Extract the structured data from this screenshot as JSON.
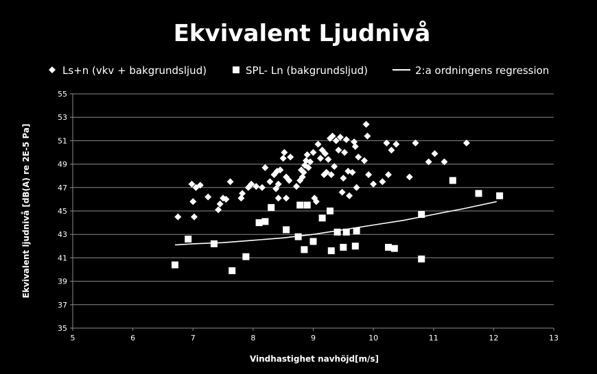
{
  "chart_data": {
    "type": "scatter",
    "title": "Ekvivalent Ljudnivå",
    "xlabel": "Vindhastighet navhöjd[m/s]",
    "ylabel": "Ekvivalent ljudnivå [dB(A) re 2E-5 Pa]",
    "xlim": [
      5,
      13
    ],
    "ylim": [
      35,
      55
    ],
    "x_ticks": [
      "5",
      "6",
      "7",
      "8",
      "9",
      "10",
      "11",
      "12",
      "13"
    ],
    "y_ticks": [
      "35",
      "37",
      "39",
      "41",
      "43",
      "45",
      "47",
      "49",
      "51",
      "53",
      "55"
    ],
    "grid": "horizontal",
    "legend_position": "top",
    "colors": {
      "background": "#000000",
      "foreground": "#ffffff",
      "gridline": "#8c8c8c"
    },
    "series": [
      {
        "name": "Ls+n (vkv + bakgrundsljud)",
        "marker": "diamond",
        "points": [
          [
            6.75,
            44.5
          ],
          [
            6.98,
            47.3
          ],
          [
            7.0,
            45.8
          ],
          [
            7.02,
            44.5
          ],
          [
            7.05,
            47.0
          ],
          [
            7.12,
            47.2
          ],
          [
            7.25,
            46.2
          ],
          [
            7.42,
            45.1
          ],
          [
            7.45,
            45.6
          ],
          [
            7.5,
            46.1
          ],
          [
            7.55,
            46.0
          ],
          [
            7.62,
            47.5
          ],
          [
            7.8,
            46.1
          ],
          [
            7.82,
            46.5
          ],
          [
            7.92,
            47.0
          ],
          [
            7.97,
            47.3
          ],
          [
            8.05,
            47.1
          ],
          [
            8.15,
            47.0
          ],
          [
            8.2,
            48.7
          ],
          [
            8.28,
            47.5
          ],
          [
            8.35,
            48.1
          ],
          [
            8.38,
            46.9
          ],
          [
            8.4,
            48.4
          ],
          [
            8.42,
            47.3
          ],
          [
            8.45,
            48.5
          ],
          [
            8.42,
            46.1
          ],
          [
            8.5,
            49.5
          ],
          [
            8.52,
            50.0
          ],
          [
            8.55,
            46.1
          ],
          [
            8.55,
            47.9
          ],
          [
            8.6,
            47.6
          ],
          [
            8.62,
            49.6
          ],
          [
            8.72,
            47.1
          ],
          [
            8.78,
            47.6
          ],
          [
            8.8,
            48.5
          ],
          [
            8.82,
            47.9
          ],
          [
            8.84,
            48.3
          ],
          [
            8.86,
            48.9
          ],
          [
            8.88,
            49.3
          ],
          [
            8.9,
            49.8
          ],
          [
            8.92,
            48.7
          ],
          [
            8.95,
            49.2
          ],
          [
            9.0,
            50.0
          ],
          [
            9.02,
            46.1
          ],
          [
            9.05,
            45.8
          ],
          [
            9.08,
            50.7
          ],
          [
            9.12,
            49.5
          ],
          [
            9.15,
            50.2
          ],
          [
            9.18,
            48.1
          ],
          [
            9.2,
            49.9
          ],
          [
            9.22,
            48.3
          ],
          [
            9.25,
            49.4
          ],
          [
            9.28,
            51.2
          ],
          [
            9.3,
            48.1
          ],
          [
            9.32,
            51.4
          ],
          [
            9.35,
            48.8
          ],
          [
            9.38,
            51.0
          ],
          [
            9.42,
            50.2
          ],
          [
            9.45,
            51.3
          ],
          [
            9.48,
            46.6
          ],
          [
            9.5,
            47.8
          ],
          [
            9.52,
            50.0
          ],
          [
            9.55,
            51.1
          ],
          [
            9.58,
            48.4
          ],
          [
            9.6,
            46.3
          ],
          [
            9.65,
            48.3
          ],
          [
            9.68,
            50.9
          ],
          [
            9.7,
            50.5
          ],
          [
            9.72,
            47.0
          ],
          [
            9.75,
            49.6
          ],
          [
            9.85,
            49.3
          ],
          [
            9.88,
            52.4
          ],
          [
            9.9,
            51.4
          ],
          [
            9.92,
            48.1
          ],
          [
            10.0,
            47.3
          ],
          [
            10.15,
            47.5
          ],
          [
            10.22,
            50.8
          ],
          [
            10.25,
            48.1
          ],
          [
            10.3,
            50.2
          ],
          [
            10.38,
            50.7
          ],
          [
            10.6,
            47.9
          ],
          [
            10.7,
            50.8
          ],
          [
            10.92,
            49.2
          ],
          [
            11.02,
            49.9
          ],
          [
            11.18,
            49.2
          ],
          [
            11.55,
            50.8
          ]
        ]
      },
      {
        "name": "SPL- Ln (bakgrundsljud)",
        "marker": "square",
        "points": [
          [
            6.7,
            40.4
          ],
          [
            6.92,
            42.6
          ],
          [
            7.35,
            42.2
          ],
          [
            7.65,
            39.9
          ],
          [
            7.88,
            41.1
          ],
          [
            8.1,
            44.0
          ],
          [
            8.2,
            44.1
          ],
          [
            8.3,
            45.3
          ],
          [
            8.55,
            43.4
          ],
          [
            8.75,
            42.8
          ],
          [
            8.78,
            45.5
          ],
          [
            8.85,
            41.7
          ],
          [
            8.9,
            45.5
          ],
          [
            9.0,
            42.4
          ],
          [
            9.15,
            44.4
          ],
          [
            9.28,
            45.0
          ],
          [
            9.3,
            41.6
          ],
          [
            9.4,
            43.2
          ],
          [
            9.5,
            41.9
          ],
          [
            9.55,
            43.2
          ],
          [
            9.7,
            42.0
          ],
          [
            9.72,
            43.3
          ],
          [
            10.25,
            41.9
          ],
          [
            10.35,
            41.8
          ],
          [
            10.8,
            44.7
          ],
          [
            10.8,
            40.9
          ],
          [
            11.32,
            47.6
          ],
          [
            11.75,
            46.5
          ],
          [
            12.1,
            46.3
          ]
        ]
      },
      {
        "name": "2:a ordningens regression",
        "marker": "line",
        "points": [
          [
            6.7,
            42.1
          ],
          [
            7.0,
            42.2
          ],
          [
            7.5,
            42.3
          ],
          [
            8.0,
            42.5
          ],
          [
            8.5,
            42.7
          ],
          [
            9.0,
            43.0
          ],
          [
            9.5,
            43.4
          ],
          [
            10.0,
            43.8
          ],
          [
            10.5,
            44.2
          ],
          [
            11.0,
            44.7
          ],
          [
            11.5,
            45.2
          ],
          [
            12.05,
            45.8
          ]
        ]
      }
    ]
  }
}
